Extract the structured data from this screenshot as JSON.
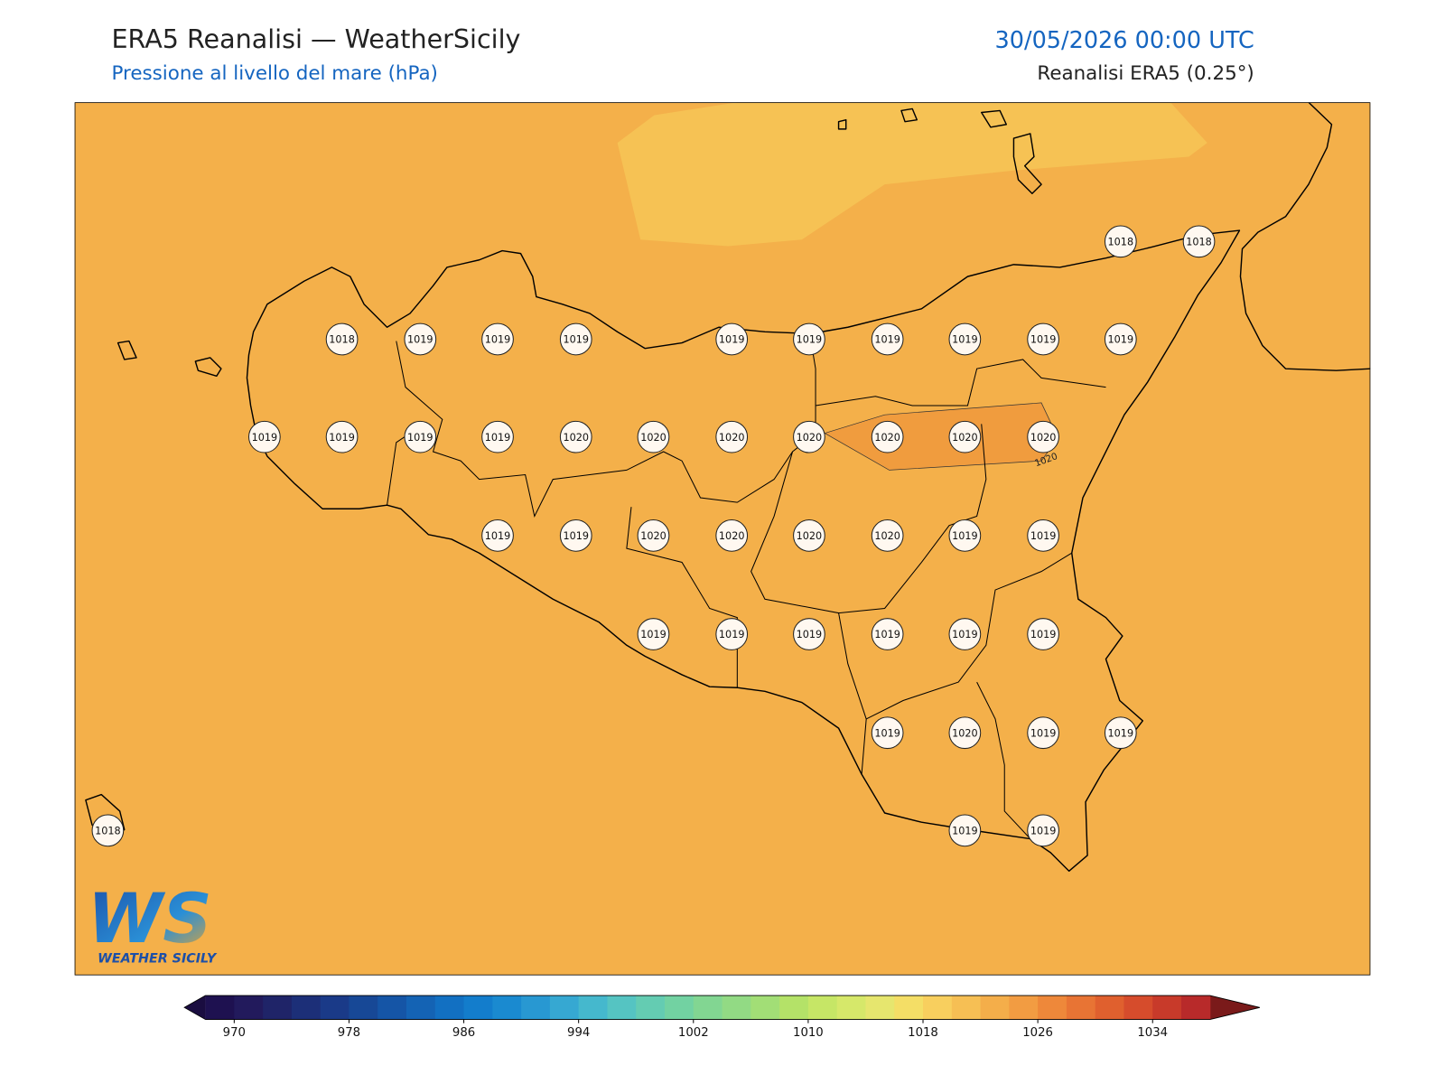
{
  "header": {
    "title": "ERA5 Reanalisi — WeatherSicily",
    "subtitle": "Pressione al livello del mare (hPa)",
    "datetime": "30/05/2026 00:00 UTC",
    "source": "Reanalisi ERA5 (0.25°)"
  },
  "map": {
    "field_color": "#f4b04a",
    "low_color": "#f6c254",
    "high_color": "#f09c3e",
    "contour_label": "1020",
    "stations": [
      1018,
      1018,
      1018,
      1019,
      1019,
      1019,
      1019,
      1019,
      1019,
      1019,
      1019,
      1019,
      1019,
      1019,
      1019,
      1019,
      1020,
      1020,
      1020,
      1020,
      1020,
      1020,
      1020,
      1019,
      1019,
      1020,
      1020,
      1020,
      1020,
      1019,
      1019,
      1019,
      1019,
      1019,
      1019,
      1019,
      1019,
      1019,
      1020,
      1019,
      1019,
      1018,
      1019,
      1019
    ]
  },
  "logo": {
    "mark": "WS",
    "name": "WEATHER SICILY"
  },
  "colorbar": {
    "lim": [
      968,
      1038
    ],
    "ticks": [
      970,
      978,
      986,
      994,
      1002,
      1010,
      1018,
      1026,
      1034
    ],
    "under_color": "#1a0d40",
    "over_color": "#7a1a1a",
    "colors": [
      "#1e1150",
      "#221a5c",
      "#1f2468",
      "#1c2f78",
      "#1a3a88",
      "#174896",
      "#1555a6",
      "#1463b4",
      "#1270c2",
      "#137dcc",
      "#1a8ad0",
      "#2898d2",
      "#36a8d2",
      "#45b8cd",
      "#55c4c2",
      "#64ccb2",
      "#72d2a2",
      "#82d692",
      "#92da84",
      "#a2de76",
      "#b4e268",
      "#c6e666",
      "#d6e86a",
      "#e6e66e",
      "#f4de66",
      "#f8cf5e",
      "#f6bf54",
      "#f4ae4a",
      "#f29c42",
      "#ee883a",
      "#e87434",
      "#e0602e",
      "#d64c2c",
      "#c83a2a",
      "#b82a2a"
    ]
  }
}
